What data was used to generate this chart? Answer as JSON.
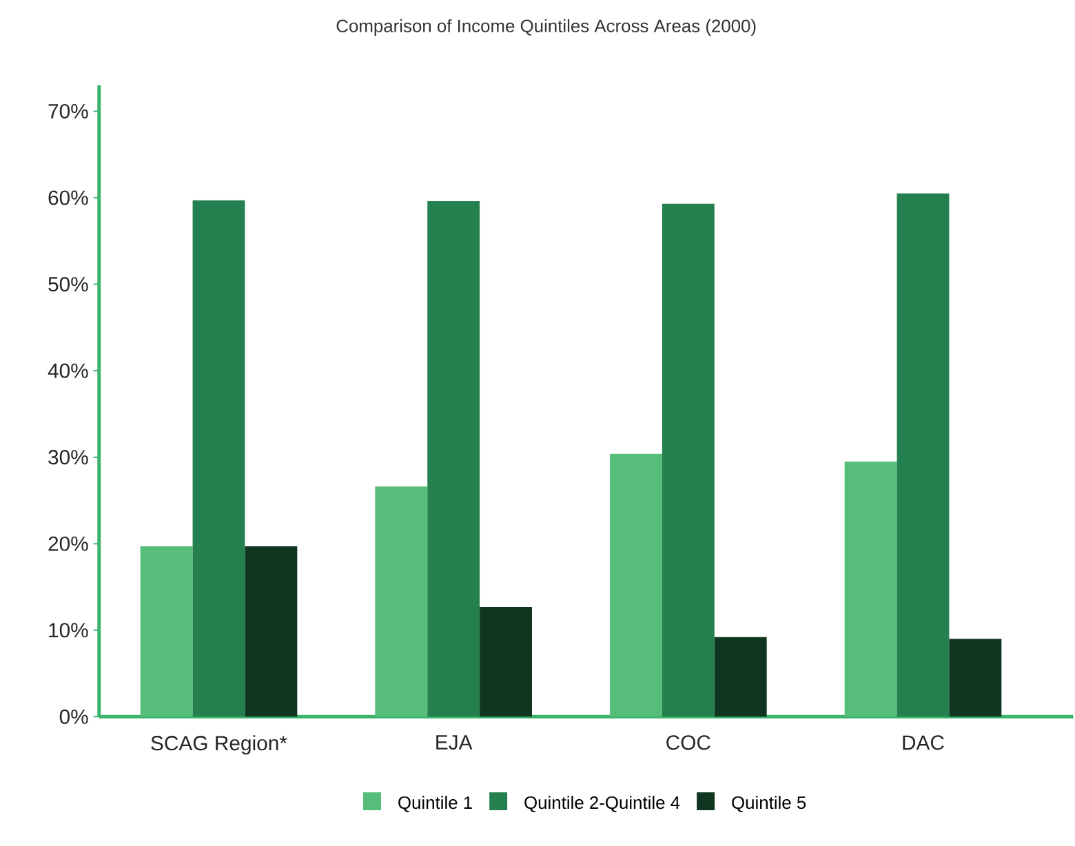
{
  "chart_data": {
    "type": "bar",
    "title": "Comparison of Income Quintiles Across Areas (2000)",
    "categories": [
      "SCAG Region*",
      "EJA",
      "COC",
      "DAC"
    ],
    "series": [
      {
        "name": "Quintile 1",
        "color": "#57bd7a",
        "values": [
          19.7,
          26.6,
          30.4,
          29.5
        ]
      },
      {
        "name": "Quintile 2-Quintile 4",
        "color": "#25804f",
        "values": [
          59.7,
          59.6,
          59.3,
          60.5
        ]
      },
      {
        "name": "Quintile 5",
        "color": "#103621",
        "values": [
          19.7,
          12.7,
          9.2,
          9.0
        ]
      }
    ],
    "ylim": [
      0,
      73
    ],
    "yticks": [
      {
        "value": 0,
        "label": "0%"
      },
      {
        "value": 10,
        "label": "10%"
      },
      {
        "value": 20,
        "label": "20%"
      },
      {
        "value": 30,
        "label": "30%"
      },
      {
        "value": 40,
        "label": "40%"
      },
      {
        "value": 50,
        "label": "50%"
      },
      {
        "value": 60,
        "label": "60%"
      },
      {
        "value": 70,
        "label": "70%"
      }
    ],
    "grid": false,
    "legend": "bottom"
  }
}
